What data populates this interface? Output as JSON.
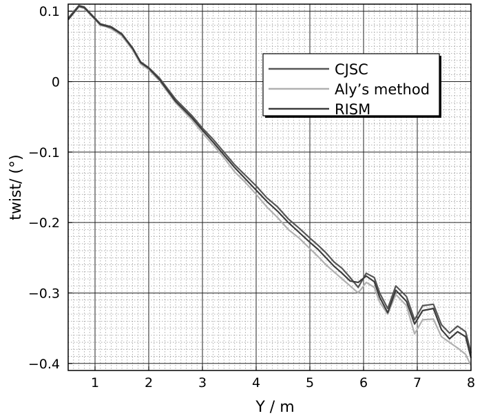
{
  "chart_data": {
    "type": "line",
    "xlabel": "Y / m",
    "ylabel": "twist/ (°)",
    "xlim": [
      0.5,
      8.0
    ],
    "ylim": [
      -0.41,
      0.11
    ],
    "xticks": [
      1,
      2,
      3,
      4,
      5,
      6,
      7,
      8
    ],
    "xtick_labels": [
      "1",
      "2",
      "3",
      "4",
      "5",
      "6",
      "7",
      "8"
    ],
    "yticks": [
      0.1,
      0,
      -0.1,
      -0.2,
      -0.3,
      -0.4
    ],
    "ytick_labels": [
      "0.1",
      "0",
      "−0.1",
      "−0.2",
      "−0.3",
      "−0.4"
    ],
    "grid": true,
    "minor_grid": true,
    "legend_position": "top-right",
    "series": [
      {
        "name": "CJSC",
        "color": "#555555",
        "x": [
          0.5,
          0.7,
          0.8,
          0.9,
          1.0,
          1.1,
          1.2,
          1.3,
          1.5,
          1.7,
          1.85,
          2.0,
          2.2,
          2.5,
          2.8,
          3.0,
          3.2,
          3.4,
          3.6,
          3.8,
          4.0,
          4.2,
          4.4,
          4.6,
          4.8,
          5.0,
          5.15,
          5.3,
          5.45,
          5.6,
          5.75,
          5.9,
          6.05,
          6.2,
          6.3,
          6.45,
          6.6,
          6.8,
          6.95,
          7.1,
          7.3,
          7.45,
          7.6,
          7.75,
          7.9,
          8.0
        ],
        "y": [
          0.09,
          0.108,
          0.106,
          0.098,
          0.09,
          0.082,
          0.08,
          0.078,
          0.068,
          0.048,
          0.028,
          0.02,
          0.005,
          -0.025,
          -0.048,
          -0.066,
          -0.082,
          -0.1,
          -0.118,
          -0.133,
          -0.148,
          -0.165,
          -0.178,
          -0.195,
          -0.208,
          -0.222,
          -0.232,
          -0.243,
          -0.256,
          -0.265,
          -0.278,
          -0.292,
          -0.272,
          -0.278,
          -0.3,
          -0.322,
          -0.29,
          -0.305,
          -0.338,
          -0.318,
          -0.316,
          -0.345,
          -0.357,
          -0.347,
          -0.355,
          -0.385
        ]
      },
      {
        "name": "Aly’s method",
        "color": "#b0b0b0",
        "x": [
          0.5,
          0.7,
          0.8,
          0.9,
          1.0,
          1.1,
          1.2,
          1.3,
          1.5,
          1.7,
          1.85,
          2.0,
          2.2,
          2.5,
          2.8,
          3.0,
          3.2,
          3.4,
          3.6,
          3.8,
          4.0,
          4.2,
          4.4,
          4.6,
          4.8,
          5.0,
          5.15,
          5.3,
          5.45,
          5.6,
          5.75,
          5.9,
          6.05,
          6.2,
          6.3,
          6.45,
          6.6,
          6.8,
          6.95,
          7.1,
          7.3,
          7.45,
          7.6,
          7.75,
          7.9,
          8.0
        ],
        "y": [
          0.088,
          0.106,
          0.104,
          0.096,
          0.088,
          0.08,
          0.078,
          0.075,
          0.065,
          0.045,
          0.025,
          0.017,
          0.001,
          -0.03,
          -0.054,
          -0.073,
          -0.09,
          -0.108,
          -0.128,
          -0.143,
          -0.16,
          -0.178,
          -0.193,
          -0.21,
          -0.222,
          -0.237,
          -0.248,
          -0.26,
          -0.27,
          -0.28,
          -0.29,
          -0.3,
          -0.285,
          -0.292,
          -0.313,
          -0.33,
          -0.302,
          -0.318,
          -0.358,
          -0.338,
          -0.337,
          -0.362,
          -0.37,
          -0.378,
          -0.387,
          -0.403
        ]
      },
      {
        "name": "RISM",
        "color": "#3c3c3c",
        "x": [
          0.5,
          0.7,
          0.8,
          0.9,
          1.0,
          1.1,
          1.2,
          1.3,
          1.5,
          1.7,
          1.85,
          2.0,
          2.2,
          2.5,
          2.8,
          3.0,
          3.2,
          3.4,
          3.6,
          3.8,
          4.0,
          4.2,
          4.4,
          4.6,
          4.8,
          5.0,
          5.15,
          5.3,
          5.45,
          5.6,
          5.75,
          5.9,
          6.05,
          6.2,
          6.3,
          6.45,
          6.6,
          6.8,
          6.95,
          7.1,
          7.3,
          7.45,
          7.6,
          7.75,
          7.9,
          8.0
        ],
        "y": [
          0.088,
          0.107,
          0.105,
          0.097,
          0.089,
          0.081,
          0.079,
          0.077,
          0.067,
          0.047,
          0.027,
          0.019,
          0.003,
          -0.028,
          -0.051,
          -0.069,
          -0.086,
          -0.104,
          -0.122,
          -0.138,
          -0.154,
          -0.17,
          -0.184,
          -0.2,
          -0.214,
          -0.228,
          -0.238,
          -0.25,
          -0.262,
          -0.272,
          -0.283,
          -0.285,
          -0.276,
          -0.284,
          -0.306,
          -0.328,
          -0.296,
          -0.312,
          -0.344,
          -0.325,
          -0.322,
          -0.352,
          -0.365,
          -0.355,
          -0.362,
          -0.392
        ]
      }
    ]
  }
}
